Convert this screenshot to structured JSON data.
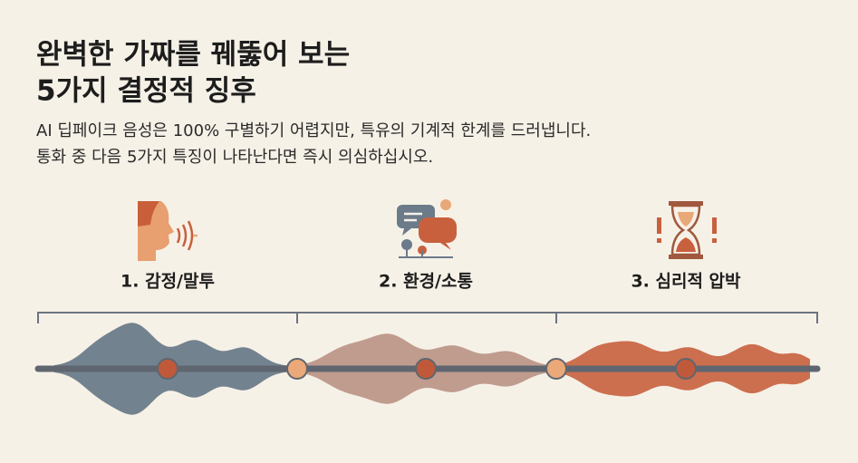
{
  "header": {
    "title": [
      "완벽한 가짜를 꿰뚫어 보는",
      "5가지 결정적 징후"
    ],
    "description": [
      "AI 딥페이크 음성은 100% 구별하기 어렵지만, 특유의 기계적 한계를 드러냅니다.",
      "통화 중 다음 5가지 특징이 나타난다면 즉시 의심하십시오."
    ]
  },
  "sections": [
    {
      "label": "1. 감정/말투"
    },
    {
      "label": "2. 환경/소통"
    },
    {
      "label": "3. 심리적 압박"
    }
  ]
}
